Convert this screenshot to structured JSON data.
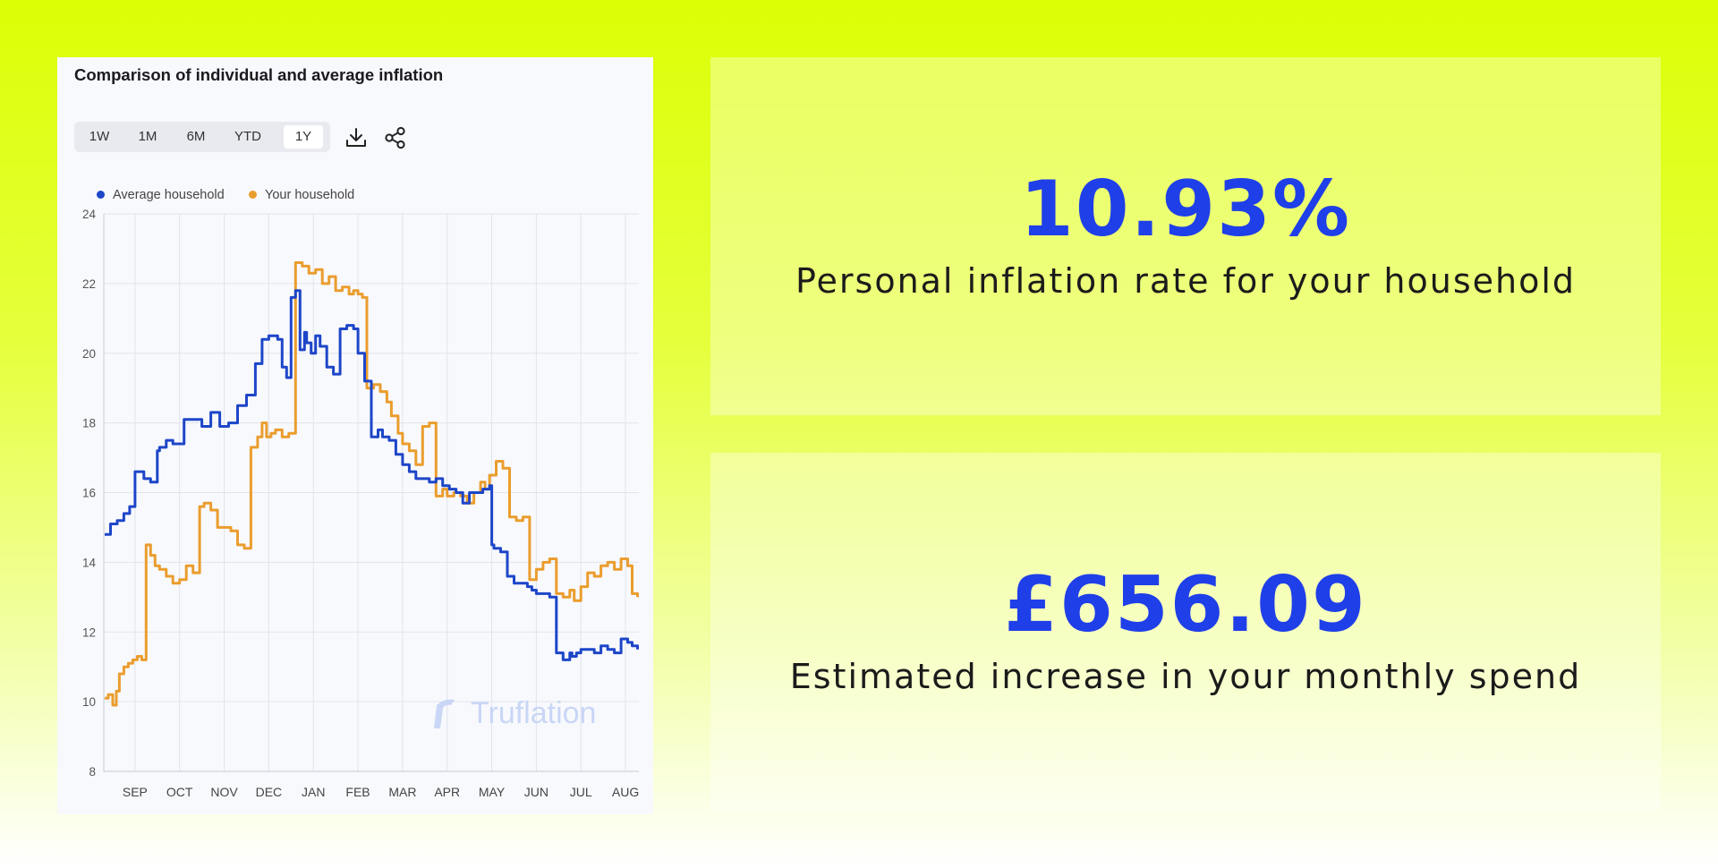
{
  "chart_card": {
    "title": "Comparison of individual and average inflation",
    "ranges": [
      "1W",
      "1M",
      "6M",
      "YTD",
      "1Y"
    ],
    "active_range": "1Y",
    "download_icon": "download-icon",
    "share_icon": "share-icon",
    "watermark": "Truflation"
  },
  "chart_data": {
    "type": "line",
    "title": "Comparison of individual and average inflation",
    "xlabel": "",
    "ylabel": "",
    "ylim": [
      8,
      24
    ],
    "yticks": [
      8,
      10,
      12,
      14,
      16,
      18,
      20,
      22,
      24
    ],
    "x_tick_labels": [
      "SEP",
      "OCT",
      "NOV",
      "DEC",
      "JAN",
      "FEB",
      "MAR",
      "APR",
      "MAY",
      "JUN",
      "JUL",
      "AUG"
    ],
    "x_domain_months": [
      -0.7,
      11.3
    ],
    "grid": true,
    "legend_placement": "top-left",
    "series": [
      {
        "name": "Average household",
        "color": "#1d46c8",
        "x": [
          -0.68,
          -0.55,
          -0.4,
          -0.25,
          -0.12,
          0.0,
          0.05,
          0.2,
          0.35,
          0.5,
          0.55,
          0.7,
          0.85,
          1.0,
          1.1,
          1.3,
          1.5,
          1.7,
          1.9,
          2.1,
          2.3,
          2.5,
          2.7,
          2.85,
          3.0,
          3.1,
          3.2,
          3.3,
          3.4,
          3.5,
          3.6,
          3.7,
          3.8,
          3.85,
          3.95,
          4.05,
          4.15,
          4.3,
          4.45,
          4.6,
          4.75,
          4.9,
          5.0,
          5.15,
          5.3,
          5.45,
          5.55,
          5.7,
          5.85,
          6.0,
          6.15,
          6.3,
          6.45,
          6.6,
          6.75,
          6.9,
          7.05,
          7.2,
          7.35,
          7.5,
          7.65,
          7.8,
          7.95,
          8.0,
          8.05,
          8.2,
          8.35,
          8.5,
          8.65,
          8.8,
          8.9,
          9.0,
          9.15,
          9.3,
          9.45,
          9.6,
          9.75,
          9.8,
          9.9,
          10.0,
          10.15,
          10.3,
          10.45,
          10.6,
          10.75,
          10.9,
          11.05,
          11.15,
          11.27
        ],
        "values": [
          14.8,
          15.1,
          15.2,
          15.4,
          15.6,
          16.6,
          16.6,
          16.4,
          16.3,
          17.2,
          17.3,
          17.5,
          17.4,
          17.4,
          18.1,
          18.1,
          17.9,
          18.3,
          17.9,
          18.0,
          18.5,
          18.8,
          19.7,
          20.4,
          20.5,
          20.5,
          20.4,
          19.6,
          19.3,
          21.6,
          21.8,
          20.1,
          20.6,
          20.3,
          20.0,
          20.5,
          20.2,
          19.6,
          19.4,
          20.7,
          20.8,
          20.7,
          20.0,
          19.2,
          17.6,
          17.8,
          17.6,
          17.5,
          17.1,
          16.8,
          16.6,
          16.4,
          16.4,
          16.3,
          16.4,
          16.2,
          16.1,
          16.0,
          15.7,
          16.0,
          16.0,
          16.1,
          16.2,
          14.5,
          14.4,
          14.3,
          13.6,
          13.4,
          13.4,
          13.3,
          13.2,
          13.1,
          13.1,
          13.0,
          11.4,
          11.2,
          11.4,
          11.3,
          11.4,
          11.5,
          11.5,
          11.4,
          11.6,
          11.5,
          11.4,
          11.8,
          11.7,
          11.6,
          11.5
        ]
      },
      {
        "name": "Your household",
        "color": "#ea9d2e",
        "x": [
          -0.68,
          -0.6,
          -0.5,
          -0.42,
          -0.35,
          -0.25,
          -0.15,
          -0.05,
          0.05,
          0.15,
          0.25,
          0.35,
          0.45,
          0.55,
          0.7,
          0.85,
          1.0,
          1.15,
          1.3,
          1.45,
          1.55,
          1.7,
          1.85,
          2.0,
          2.15,
          2.3,
          2.45,
          2.6,
          2.75,
          2.85,
          2.95,
          3.05,
          3.15,
          3.3,
          3.45,
          3.6,
          3.75,
          3.9,
          4.05,
          4.2,
          4.35,
          4.5,
          4.65,
          4.8,
          4.9,
          5.0,
          5.1,
          5.2,
          5.35,
          5.5,
          5.65,
          5.75,
          5.9,
          6.0,
          6.15,
          6.3,
          6.45,
          6.6,
          6.75,
          6.9,
          7.0,
          7.15,
          7.3,
          7.45,
          7.6,
          7.75,
          7.85,
          7.95,
          8.1,
          8.25,
          8.4,
          8.55,
          8.7,
          8.85,
          9.0,
          9.15,
          9.3,
          9.45,
          9.6,
          9.75,
          9.85,
          10.0,
          10.15,
          10.3,
          10.45,
          10.6,
          10.75,
          10.9,
          11.05,
          11.15,
          11.27
        ],
        "values": [
          10.1,
          10.2,
          9.9,
          10.3,
          10.8,
          11.0,
          11.1,
          11.2,
          11.3,
          11.2,
          14.5,
          14.2,
          13.9,
          13.8,
          13.6,
          13.4,
          13.5,
          13.9,
          13.7,
          15.6,
          15.7,
          15.5,
          15.0,
          15.0,
          14.9,
          14.5,
          14.4,
          17.3,
          17.6,
          18.0,
          17.6,
          17.7,
          17.8,
          17.6,
          17.7,
          22.6,
          22.5,
          22.3,
          22.4,
          22.0,
          22.2,
          21.8,
          21.9,
          21.7,
          21.8,
          21.7,
          21.6,
          19.0,
          19.1,
          18.9,
          18.6,
          18.2,
          17.7,
          17.4,
          17.2,
          16.8,
          17.9,
          18.0,
          15.9,
          16.1,
          15.9,
          16.0,
          15.9,
          15.7,
          16.0,
          16.3,
          16.1,
          16.5,
          16.9,
          16.7,
          15.3,
          15.2,
          15.3,
          13.5,
          13.8,
          14.0,
          14.1,
          13.1,
          13.0,
          13.2,
          12.9,
          13.3,
          13.7,
          13.6,
          13.9,
          14.0,
          13.8,
          14.1,
          13.9,
          13.1,
          13.0
        ]
      }
    ]
  },
  "stats": [
    {
      "value": "10.93%",
      "label": "Personal inflation rate for your household"
    },
    {
      "value": "£656.09",
      "label": "Estimated increase in your monthly spend"
    }
  ]
}
